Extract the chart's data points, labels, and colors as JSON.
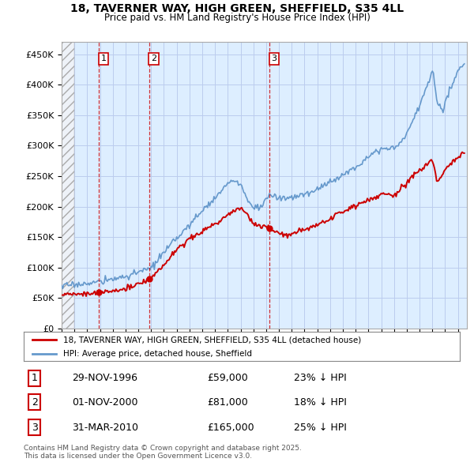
{
  "title": "18, TAVERNER WAY, HIGH GREEN, SHEFFIELD, S35 4LL",
  "subtitle": "Price paid vs. HM Land Registry's House Price Index (HPI)",
  "hpi_color": "#6699cc",
  "price_color": "#cc0000",
  "background_color": "#ffffff",
  "chart_bg_color": "#ddeeff",
  "grid_color": "#bbccee",
  "ylim": [
    0,
    470000
  ],
  "yticks": [
    0,
    50000,
    100000,
    150000,
    200000,
    250000,
    300000,
    350000,
    400000,
    450000
  ],
  "ytick_labels": [
    "£0",
    "£50K",
    "£100K",
    "£150K",
    "£200K",
    "£250K",
    "£300K",
    "£350K",
    "£400K",
    "£450K"
  ],
  "xlim_start": 1994.0,
  "xlim_end": 2025.7,
  "transactions": [
    {
      "label": "1",
      "date": 1996.91,
      "price": 59000
    },
    {
      "label": "2",
      "date": 2000.84,
      "price": 81000
    },
    {
      "label": "3",
      "date": 2010.25,
      "price": 165000
    }
  ],
  "legend_entries": [
    "18, TAVERNER WAY, HIGH GREEN, SHEFFIELD, S35 4LL (detached house)",
    "HPI: Average price, detached house, Sheffield"
  ],
  "table_rows": [
    {
      "num": "1",
      "date": "29-NOV-1996",
      "price": "£59,000",
      "note": "23% ↓ HPI"
    },
    {
      "num": "2",
      "date": "01-NOV-2000",
      "price": "£81,000",
      "note": "18% ↓ HPI"
    },
    {
      "num": "3",
      "date": "31-MAR-2010",
      "price": "£165,000",
      "note": "25% ↓ HPI"
    }
  ],
  "footer": "Contains HM Land Registry data © Crown copyright and database right 2025.\nThis data is licensed under the Open Government Licence v3.0."
}
